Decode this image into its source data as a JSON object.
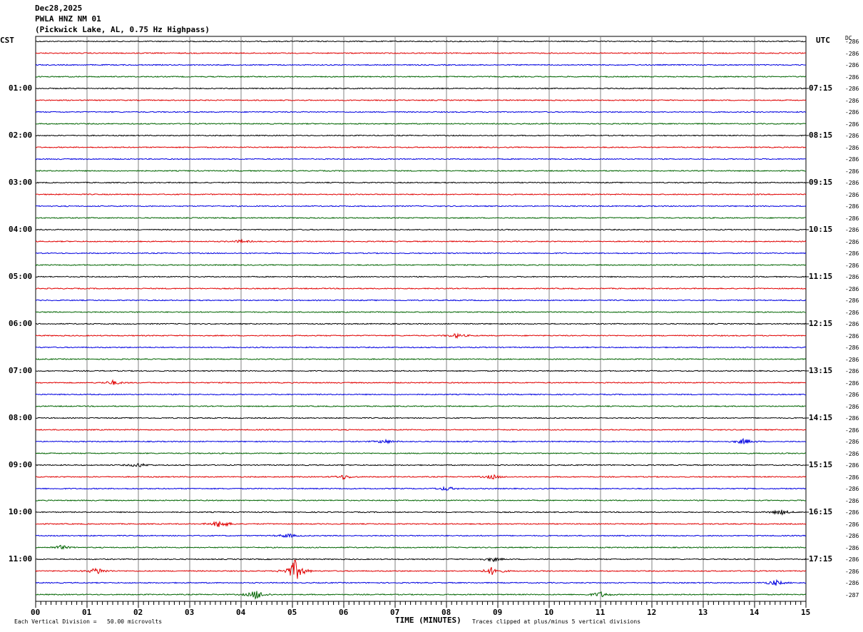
{
  "header": {
    "date": "Dec28,2025",
    "station": "PWLA HNZ NM 01",
    "location": "(Pickwick Lake, AL, 0.75 Hz Highpass)"
  },
  "axis": {
    "left_tz": "CST",
    "right_tz": "UTC",
    "dc_label": "DC",
    "xlabel": "TIME (MINUTES)",
    "x_ticks": [
      "00",
      "01",
      "02",
      "03",
      "04",
      "05",
      "06",
      "07",
      "08",
      "09",
      "10",
      "11",
      "12",
      "13",
      "14",
      "15"
    ]
  },
  "footer": {
    "left": "Each Vertical Division =   50.00 microvolts",
    "right": "Traces clipped at plus/minus 5 vertical divisions"
  },
  "colors": {
    "trace_cycle": [
      "#000000",
      "#e00000",
      "#0000e0",
      "#006400"
    ],
    "grid": "#808080"
  },
  "chart_data": {
    "type": "line",
    "x_range_minutes": [
      0,
      15
    ],
    "rows_per_hour": 4,
    "hour_labels_left": [
      "01:00",
      "02:00",
      "03:00",
      "04:00",
      "05:00",
      "06:00",
      "07:00",
      "08:00",
      "09:00",
      "10:00",
      "11:00"
    ],
    "hour_labels_right": [
      "07:15",
      "08:15",
      "09:15",
      "10:15",
      "11:15",
      "12:15",
      "13:15",
      "14:15",
      "15:15",
      "16:15",
      "17:15"
    ],
    "dc_offsets": [
      "-286",
      "-286",
      "-286",
      "-286",
      "-286",
      "-286",
      "-286",
      "-286",
      "-286",
      "-286",
      "-286",
      "-286",
      "-286",
      "-286",
      "-286",
      "-286",
      "-286",
      "-286",
      "-286",
      "-286",
      "-286",
      "-286",
      "-286",
      "-286",
      "-286",
      "-286",
      "-286",
      "-286",
      "-286",
      "-286",
      "-286",
      "-286",
      "-286",
      "-286",
      "-286",
      "-286",
      "-286",
      "-286",
      "-286",
      "-286",
      "-286",
      "-286",
      "-286",
      "-286",
      "-286",
      "-286",
      "-286",
      "-287"
    ],
    "events": [
      {
        "row": 17,
        "minute": 4.0,
        "amp": 2
      },
      {
        "row": 25,
        "minute": 8.2,
        "amp": 3
      },
      {
        "row": 29,
        "minute": 1.5,
        "amp": 3
      },
      {
        "row": 34,
        "minute": 6.8,
        "amp": 3
      },
      {
        "row": 34,
        "minute": 13.8,
        "amp": 4
      },
      {
        "row": 36,
        "minute": 2.0,
        "amp": 3
      },
      {
        "row": 37,
        "minute": 6.0,
        "amp": 3
      },
      {
        "row": 37,
        "minute": 8.9,
        "amp": 3
      },
      {
        "row": 38,
        "minute": 8.0,
        "amp": 3
      },
      {
        "row": 40,
        "minute": 14.5,
        "amp": 4
      },
      {
        "row": 41,
        "minute": 3.6,
        "amp": 6
      },
      {
        "row": 42,
        "minute": 4.9,
        "amp": 3
      },
      {
        "row": 43,
        "minute": 0.5,
        "amp": 3
      },
      {
        "row": 44,
        "minute": 8.9,
        "amp": 3
      },
      {
        "row": 45,
        "minute": 5.05,
        "amp": 16
      },
      {
        "row": 45,
        "minute": 1.2,
        "amp": 5
      },
      {
        "row": 45,
        "minute": 8.9,
        "amp": 6
      },
      {
        "row": 46,
        "minute": 14.4,
        "amp": 4
      },
      {
        "row": 47,
        "minute": 4.3,
        "amp": 7
      },
      {
        "row": 47,
        "minute": 11.0,
        "amp": 4
      }
    ]
  }
}
